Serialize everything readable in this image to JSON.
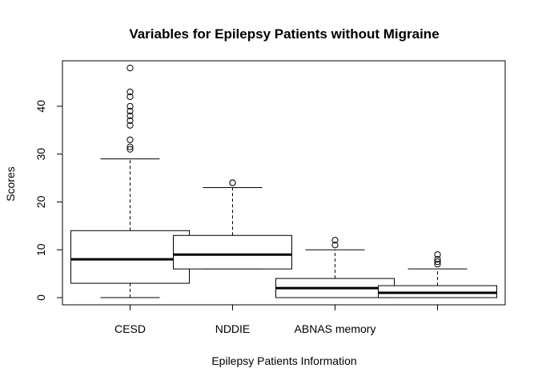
{
  "chart_data": {
    "type": "box",
    "title": "Variables for Epilepsy Patients without Migraine",
    "xlabel": "Epilepsy Patients Information",
    "ylabel": "Scores",
    "ylim": [
      -1.5,
      49.5
    ],
    "yticks": [
      0,
      10,
      20,
      30,
      40
    ],
    "grid": false,
    "categories": [
      "CESD",
      "NDDIE",
      "ABNAS memory",
      ""
    ],
    "boxes": [
      {
        "whisker_low": 0,
        "q1": 3,
        "median": 8,
        "q3": 14,
        "whisker_high": 29,
        "outliers": [
          31,
          31.5,
          33,
          36,
          37,
          38,
          39,
          40,
          42,
          43,
          48
        ]
      },
      {
        "whisker_low": 6,
        "q1": 6,
        "median": 9,
        "q3": 13,
        "whisker_high": 23,
        "outliers": [
          24,
          24
        ]
      },
      {
        "whisker_low": 0,
        "q1": 0,
        "median": 2,
        "q3": 4,
        "whisker_high": 10,
        "outliers": [
          11,
          12
        ]
      },
      {
        "whisker_low": 0,
        "q1": 0,
        "median": 1,
        "q3": 2.5,
        "whisker_high": 6,
        "outliers": [
          7,
          7.5,
          8,
          9
        ]
      }
    ]
  }
}
